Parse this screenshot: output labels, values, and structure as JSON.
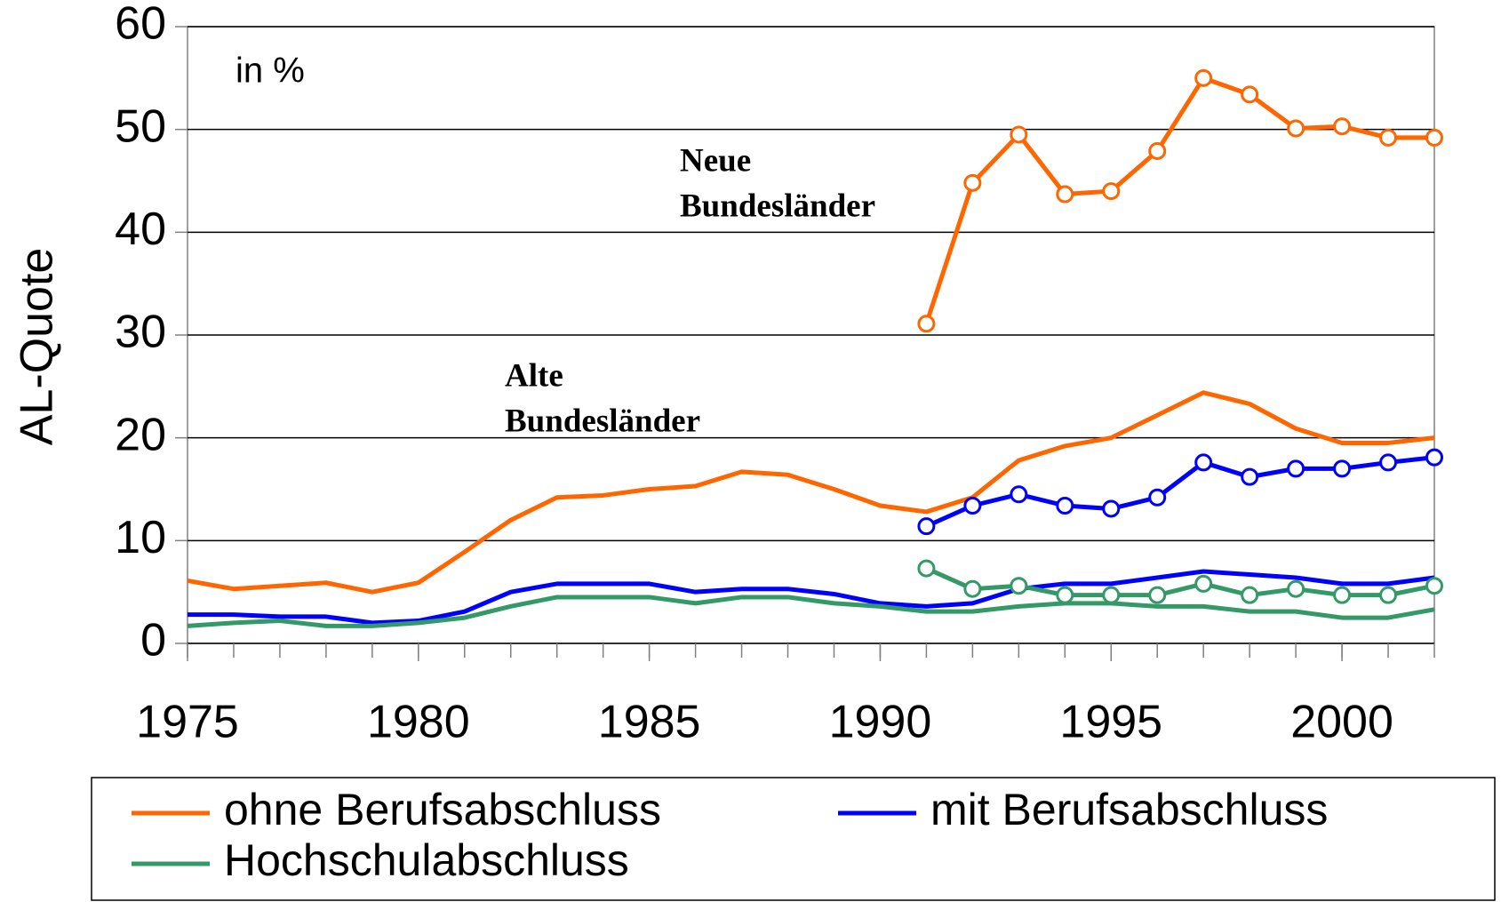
{
  "chart_data": {
    "type": "line",
    "y_label": "AL-Quote",
    "annotations": {
      "unit": "in %",
      "neue": [
        "Neue",
        "Bundesländer"
      ],
      "alte": [
        "Alte",
        "Bundesländer"
      ]
    },
    "x": [
      1975,
      1976,
      1977,
      1978,
      1979,
      1980,
      1981,
      1982,
      1983,
      1984,
      1985,
      1986,
      1987,
      1988,
      1989,
      1990,
      1991,
      1992,
      1993,
      1994,
      1995,
      1996,
      1997,
      1998,
      1999,
      2000,
      2001,
      2002
    ],
    "xlim": [
      1975,
      2002
    ],
    "xticks": [
      1975,
      1980,
      1985,
      1990,
      1995,
      2000
    ],
    "ylim": [
      0,
      60
    ],
    "yticks": [
      0,
      10,
      20,
      30,
      40,
      50,
      60
    ],
    "grid": true,
    "series": [
      {
        "name": "ohne Berufsabschluss",
        "color": "#ff6600",
        "values": [
          6.1,
          5.3,
          5.6,
          5.9,
          5.0,
          5.9,
          8.9,
          12.0,
          14.2,
          14.4,
          15.0,
          15.3,
          16.7,
          16.4,
          15.0,
          13.4,
          12.8,
          14.2,
          17.8,
          19.2,
          20.0,
          22.2,
          24.4,
          23.3,
          20.9,
          19.5,
          19.5,
          20.0
        ],
        "values_neue": [
          null,
          null,
          null,
          null,
          null,
          null,
          null,
          null,
          null,
          null,
          null,
          null,
          null,
          null,
          null,
          null,
          31.1,
          44.8,
          49.5,
          43.7,
          44.0,
          47.9,
          55.0,
          53.4,
          50.1,
          50.3,
          49.2,
          49.2
        ]
      },
      {
        "name": "mit Berufsabschluss",
        "color": "#0000ff",
        "values": [
          2.8,
          2.8,
          2.6,
          2.6,
          2.0,
          2.2,
          3.1,
          5.0,
          5.8,
          5.8,
          5.8,
          5.0,
          5.3,
          5.3,
          4.8,
          3.9,
          3.6,
          3.9,
          5.3,
          5.8,
          5.8,
          6.4,
          7.0,
          6.7,
          6.4,
          5.8,
          5.8,
          6.4
        ],
        "values_neue": [
          null,
          null,
          null,
          null,
          null,
          null,
          null,
          null,
          null,
          null,
          null,
          null,
          null,
          null,
          null,
          null,
          11.4,
          13.4,
          14.5,
          13.4,
          13.1,
          14.2,
          17.6,
          16.2,
          17.0,
          17.0,
          17.6,
          18.1
        ]
      },
      {
        "name": "Hochschulabschluss",
        "color": "#339966",
        "values": [
          1.7,
          2.0,
          2.2,
          1.7,
          1.7,
          2.0,
          2.5,
          3.6,
          4.5,
          4.5,
          4.5,
          3.9,
          4.5,
          4.5,
          3.9,
          3.6,
          3.1,
          3.1,
          3.6,
          3.9,
          3.9,
          3.6,
          3.6,
          3.1,
          3.1,
          2.5,
          2.5,
          3.3
        ],
        "values_neue": [
          null,
          null,
          null,
          null,
          null,
          null,
          null,
          null,
          null,
          null,
          null,
          null,
          null,
          null,
          null,
          null,
          7.3,
          5.3,
          5.6,
          4.7,
          4.7,
          4.7,
          5.8,
          4.7,
          5.3,
          4.7,
          4.7,
          5.6
        ]
      }
    ]
  }
}
